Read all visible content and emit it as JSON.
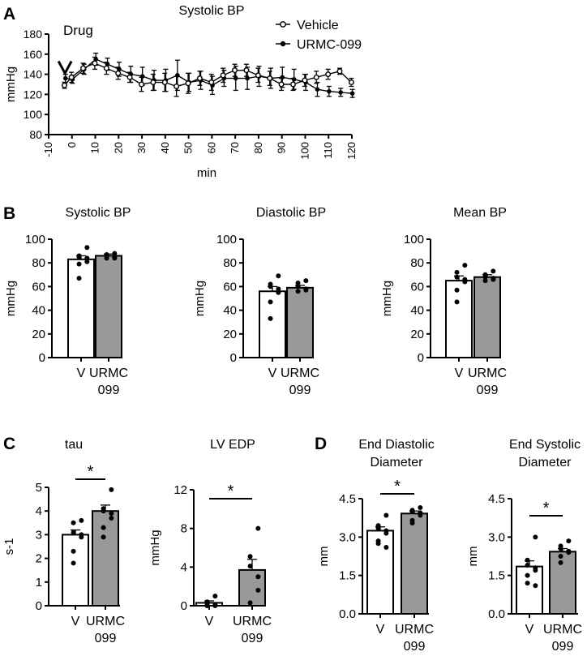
{
  "chart_data": [
    {
      "panel": "A",
      "type": "line",
      "title": "Systolic  BP",
      "annotation": "Drug",
      "xlabel": "min",
      "ylabel": "mmHg",
      "xlim": [
        -10,
        120
      ],
      "ylim": [
        80,
        180
      ],
      "xticks": [
        "-10",
        "0",
        "10",
        "20",
        "30",
        "40",
        "50",
        "60",
        "70",
        "80",
        "90",
        "100",
        "110",
        "120"
      ],
      "yticks": [
        "80",
        "100",
        "120",
        "140",
        "160",
        "180"
      ],
      "x": [
        -3,
        0,
        5,
        10,
        15,
        20,
        25,
        30,
        35,
        40,
        45,
        50,
        55,
        60,
        65,
        70,
        75,
        80,
        85,
        90,
        95,
        100,
        105,
        110,
        115,
        120
      ],
      "series": [
        {
          "name": "Vehicle",
          "marker": "open-circle",
          "values": [
            129,
            137,
            146,
            151,
            146,
            141,
            137,
            130,
            132,
            132,
            128,
            131,
            136,
            132,
            139,
            144,
            144,
            139,
            136,
            130,
            130,
            134,
            137,
            140,
            143,
            132
          ],
          "errors": [
            3,
            5,
            5,
            6,
            6,
            6,
            5,
            7,
            8,
            9,
            10,
            10,
            7,
            8,
            7,
            6,
            6,
            7,
            7,
            6,
            6,
            6,
            6,
            5,
            3,
            4
          ]
        },
        {
          "name": "URMC-099",
          "marker": "filled-circle",
          "values": [
            136,
            135,
            145,
            155,
            150,
            145,
            140,
            138,
            134,
            134,
            139,
            132,
            134,
            129,
            136,
            136,
            136,
            138,
            136,
            137,
            135,
            132,
            125,
            123,
            122,
            121
          ],
          "errors": [
            4,
            4,
            5,
            6,
            6,
            7,
            8,
            9,
            10,
            11,
            15,
            9,
            9,
            9,
            8,
            12,
            11,
            10,
            10,
            10,
            10,
            8,
            7,
            5,
            4,
            4
          ]
        }
      ]
    },
    {
      "panel": "B",
      "type": "bar",
      "title": "Systolic BP",
      "ylabel": "mmHg",
      "ylim": [
        0,
        100
      ],
      "yticks": [
        "0",
        "20",
        "40",
        "60",
        "80",
        "100"
      ],
      "categories": [
        "V",
        "URMC\n099"
      ],
      "values": [
        83,
        86
      ],
      "errors": [
        3,
        1.5
      ],
      "points": [
        [
          93,
          86,
          85,
          84,
          81,
          79,
          67
        ],
        [
          88,
          87,
          86,
          85,
          84,
          84
        ]
      ],
      "bar_fill": [
        "#ffffff",
        "#999999"
      ]
    },
    {
      "panel": "B",
      "type": "bar",
      "title": "Diastolic BP",
      "ylabel": "mmHg",
      "ylim": [
        0,
        100
      ],
      "yticks": [
        "0",
        "20",
        "40",
        "60",
        "80",
        "100"
      ],
      "categories": [
        "V",
        "URMC\n099"
      ],
      "values": [
        56,
        59
      ],
      "errors": [
        4,
        2
      ],
      "points": [
        [
          69,
          62,
          60,
          58,
          55,
          47,
          33
        ],
        [
          65,
          63,
          60,
          58,
          57,
          56
        ]
      ],
      "bar_fill": [
        "#ffffff",
        "#999999"
      ]
    },
    {
      "panel": "B",
      "type": "bar",
      "title": "Mean BP",
      "ylabel": "mmHg",
      "ylim": [
        0,
        100
      ],
      "yticks": [
        "0",
        "20",
        "40",
        "60",
        "80",
        "100"
      ],
      "categories": [
        "V",
        "URMC\n099"
      ],
      "values": [
        65,
        68
      ],
      "errors": [
        4,
        2
      ],
      "points": [
        [
          78,
          72,
          68,
          66,
          64,
          57,
          47
        ],
        [
          73,
          70,
          68,
          67,
          66,
          65
        ]
      ],
      "bar_fill": [
        "#ffffff",
        "#999999"
      ]
    },
    {
      "panel": "C",
      "type": "bar",
      "title": "tau",
      "ylabel": "s-1",
      "ylim": [
        0,
        5
      ],
      "yticks": [
        "0",
        "1",
        "2",
        "3",
        "4",
        "5"
      ],
      "categories": [
        "V",
        "URMC\n099"
      ],
      "values": [
        3.0,
        4.0
      ],
      "errors": [
        0.2,
        0.25
      ],
      "points": [
        [
          3.6,
          3.5,
          3.1,
          3.0,
          2.9,
          2.3,
          1.8
        ],
        [
          4.9,
          4.1,
          4.0,
          3.9,
          3.7,
          3.3,
          2.9
        ]
      ],
      "bar_fill": [
        "#ffffff",
        "#999999"
      ],
      "significance": "*"
    },
    {
      "panel": "C",
      "type": "bar",
      "title": "LV EDP",
      "ylabel": "mmHg",
      "ylim": [
        0,
        12
      ],
      "yticks": [
        "0",
        "4",
        "8",
        "12"
      ],
      "categories": [
        "V",
        "URMC\n099"
      ],
      "values": [
        0.3,
        3.7
      ],
      "errors": [
        0.2,
        1.1
      ],
      "points": [
        [
          1.0,
          0.4,
          0.2,
          0.1,
          0.0,
          0.0,
          0.0
        ],
        [
          8.0,
          5.1,
          4.1,
          3.0,
          1.6,
          0.3
        ]
      ],
      "bar_fill": [
        "#ffffff",
        "#999999"
      ],
      "significance": "*"
    },
    {
      "panel": "D",
      "type": "bar",
      "title": "End Diastolic\nDiameter",
      "ylabel": "mm",
      "ylim": [
        0,
        4.5
      ],
      "yticks": [
        "0.0",
        "1.5",
        "3.0",
        "4.5"
      ],
      "categories": [
        "V",
        "URMC\n099"
      ],
      "values": [
        3.25,
        3.92
      ],
      "errors": [
        0.15,
        0.1
      ],
      "points": [
        [
          3.85,
          3.45,
          3.35,
          3.25,
          3.15,
          2.85,
          2.75,
          2.6
        ],
        [
          4.15,
          4.05,
          4.0,
          3.95,
          3.85,
          3.65,
          3.55
        ]
      ],
      "bar_fill": [
        "#ffffff",
        "#999999"
      ],
      "significance": "*"
    },
    {
      "panel": "D",
      "type": "bar",
      "title": "End Systolic\nDiameter",
      "ylabel": "mm",
      "ylim": [
        0,
        4.5
      ],
      "yticks": [
        "0.0",
        "1.5",
        "3.0",
        "4.5"
      ],
      "categories": [
        "V",
        "URMC\n099"
      ],
      "values": [
        1.85,
        2.43
      ],
      "errors": [
        0.22,
        0.12
      ],
      "points": [
        [
          3.0,
          2.1,
          1.9,
          1.8,
          1.7,
          1.5,
          1.2,
          1.1
        ],
        [
          2.85,
          2.65,
          2.55,
          2.45,
          2.4,
          2.25,
          2.0
        ]
      ],
      "bar_fill": [
        "#ffffff",
        "#999999"
      ],
      "significance": "*"
    }
  ],
  "panel_letters": [
    "A",
    "B",
    "C",
    "D"
  ]
}
